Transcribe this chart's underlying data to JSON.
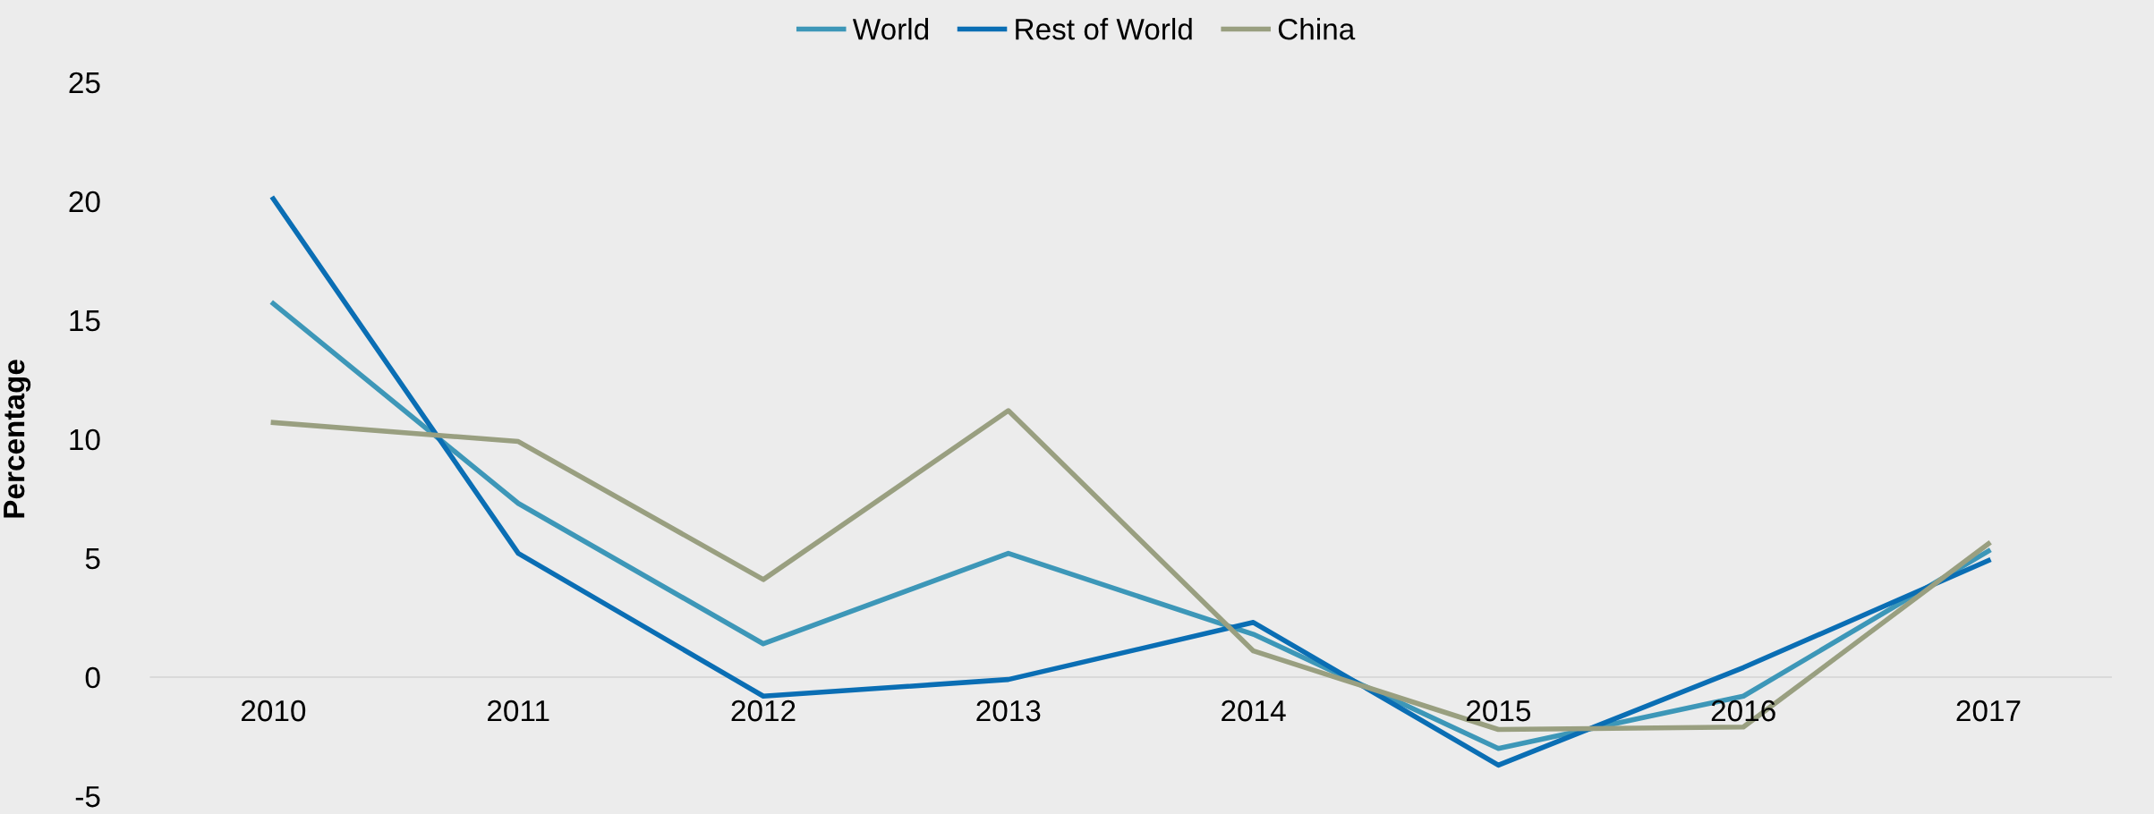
{
  "chart_data": {
    "type": "line",
    "ylabel": "Percentage",
    "categories": [
      "2010",
      "2011",
      "2012",
      "2013",
      "2014",
      "2015",
      "2016",
      "2017"
    ],
    "series": [
      {
        "name": "World",
        "color": "#3d97b8",
        "values": [
          15.7,
          7.3,
          1.4,
          5.2,
          1.8,
          -3.0,
          -0.8,
          5.3
        ]
      },
      {
        "name": "Rest of World",
        "color": "#0a6eb4",
        "values": [
          20.1,
          5.2,
          -0.8,
          -0.1,
          2.3,
          -3.7,
          0.4,
          4.9
        ]
      },
      {
        "name": "China",
        "color": "#999f80",
        "values": [
          10.7,
          9.9,
          4.1,
          11.2,
          1.1,
          -2.2,
          -2.1,
          5.6
        ]
      }
    ],
    "ylim": [
      -5,
      25
    ],
    "yticks": [
      -5,
      0,
      5,
      10,
      15,
      20,
      25
    ],
    "grid": false,
    "legend": "top",
    "marker": "none",
    "line_style": "solid"
  }
}
